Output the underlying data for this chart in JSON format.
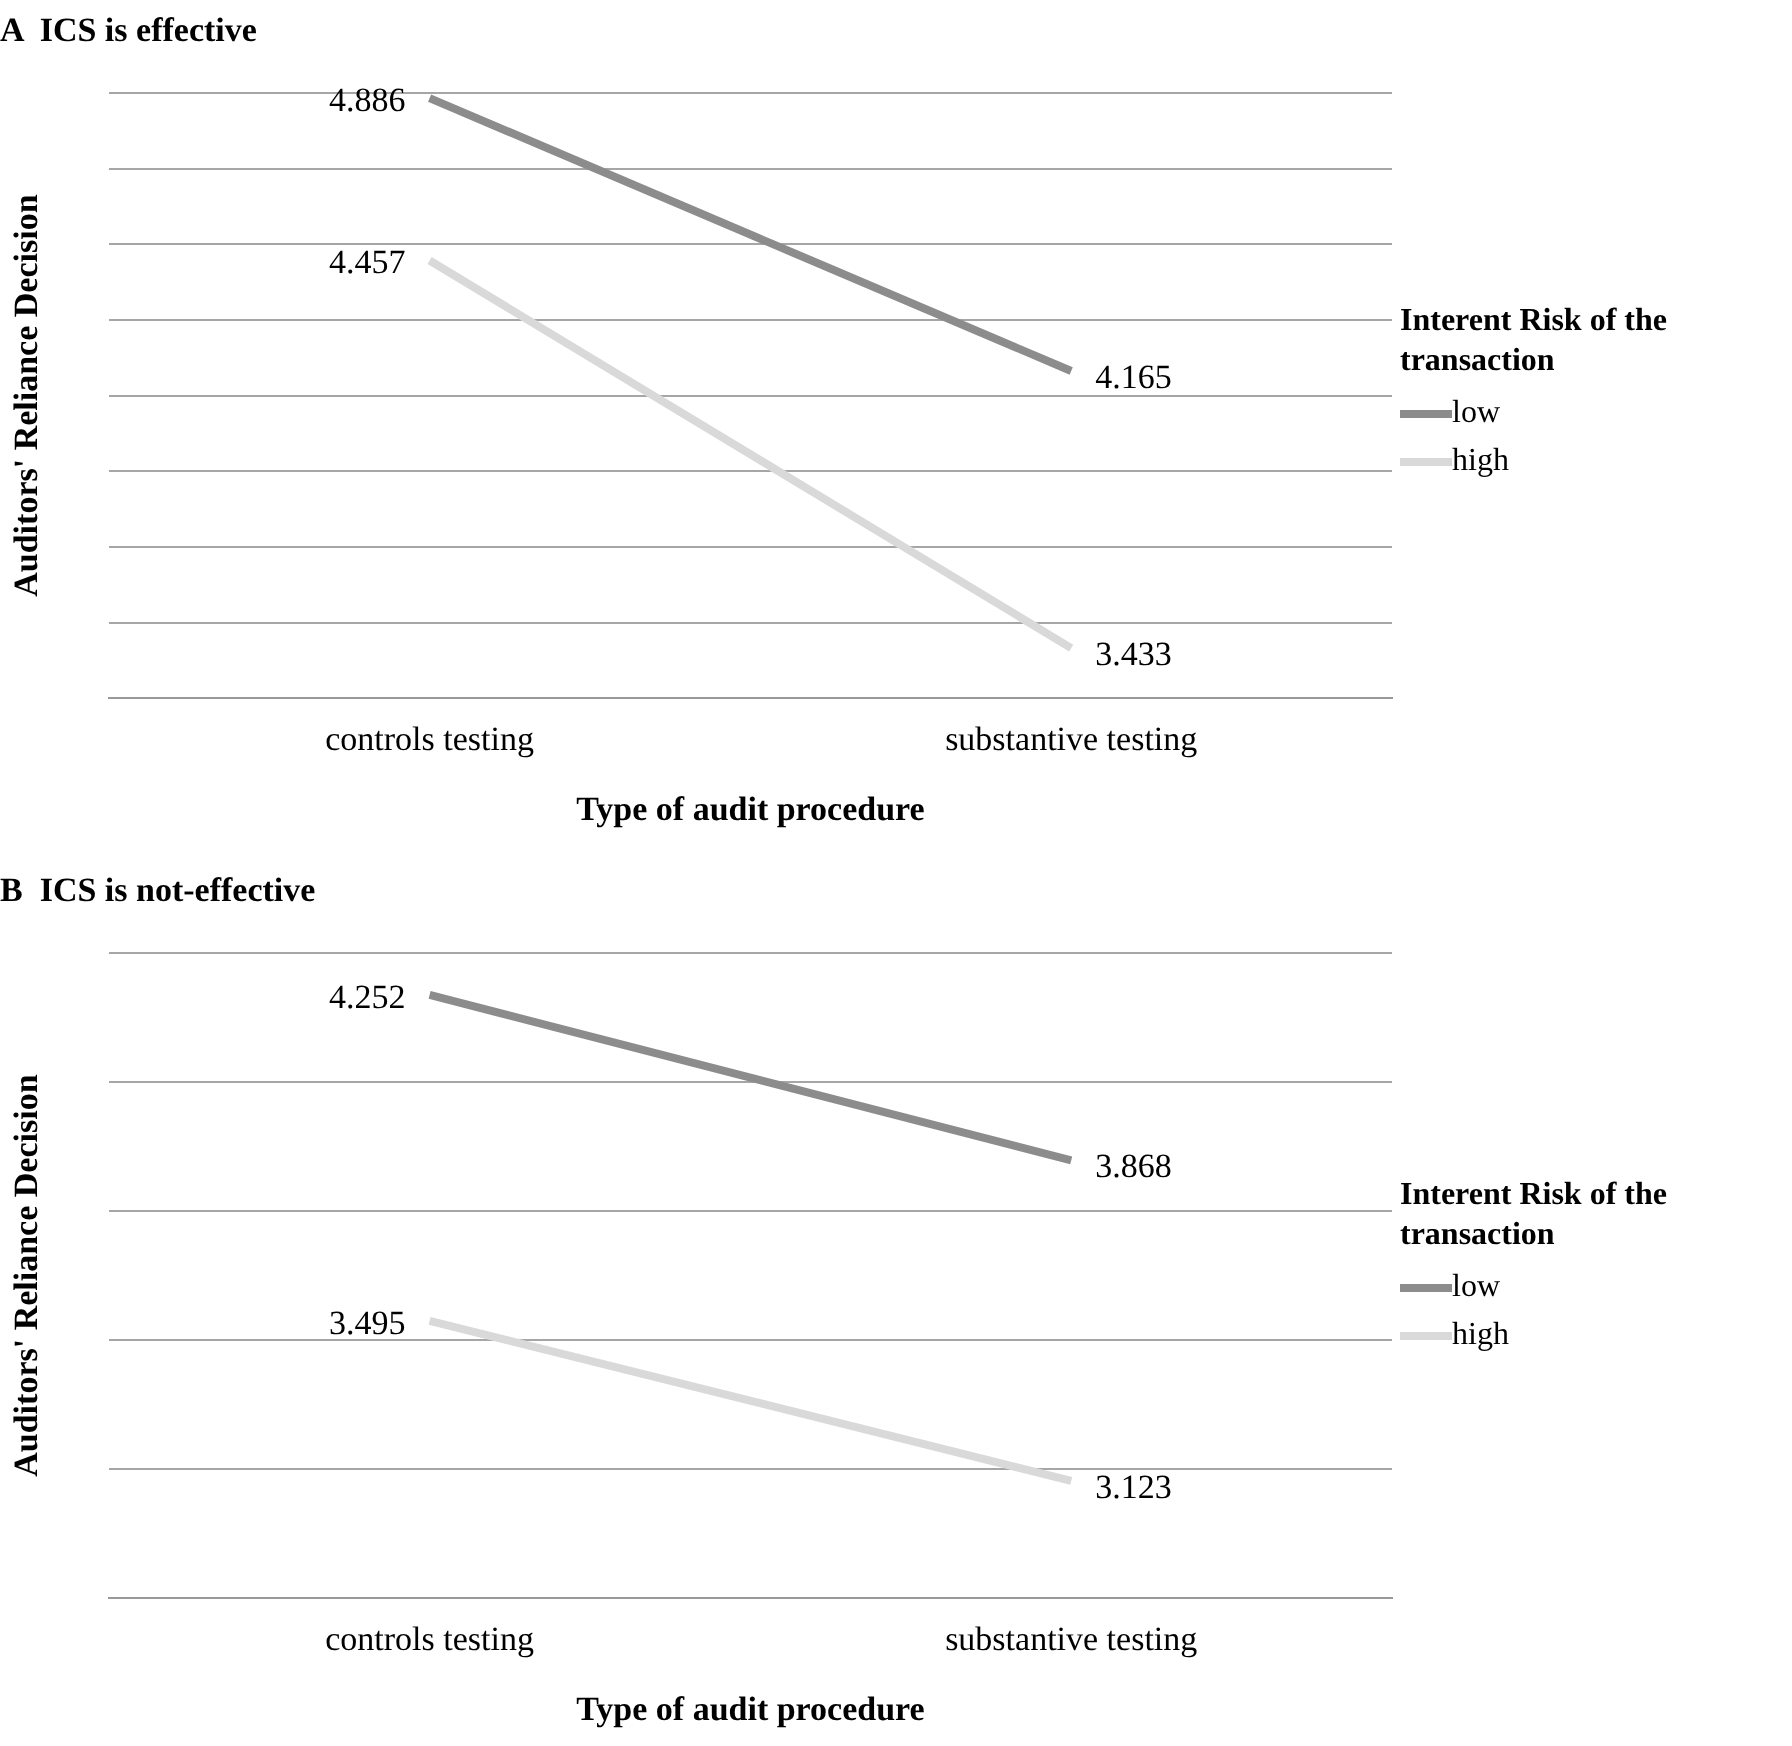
{
  "chart_data": [
    {
      "type": "line",
      "title": "A  ICS is effective",
      "xlabel": "Type of audit procedure",
      "ylabel": "Auditors' Reliance Decision",
      "legend_title": "Interent Risk of the transaction",
      "categories": [
        "controls testing",
        "substantive testing"
      ],
      "series": [
        {
          "name": "low",
          "color": "#8c8c8c",
          "values": [
            4.886,
            4.165
          ]
        },
        {
          "name": "high",
          "color": "#d9d9d9",
          "values": [
            4.457,
            3.433
          ]
        }
      ],
      "ylim": [
        3.3,
        4.9
      ],
      "yticks": [
        {
          "value": 3.3,
          "label": null
        },
        {
          "value": 3.5,
          "label": null
        },
        {
          "value": 3.7,
          "label": null
        },
        {
          "value": 3.9,
          "label": null
        },
        {
          "value": 4.1,
          "label": null
        },
        {
          "value": 4.3,
          "label": null
        },
        {
          "value": 4.5,
          "label": null
        },
        {
          "value": 4.7,
          "label": null
        },
        {
          "value": 4.9,
          "label": null
        }
      ],
      "tick_labels": "x",
      "grid": "y",
      "legend": "right",
      "data_labels": true,
      "marker": "none",
      "line_style": "solid"
    },
    {
      "type": "line",
      "title": "B  ICS is not-effective",
      "xlabel": "Type of audit procedure",
      "ylabel": "Auditors' Reliance Decision",
      "legend_title": "Interent Risk of the transaction",
      "categories": [
        "controls testing",
        "substantive testing"
      ],
      "series": [
        {
          "name": "low",
          "color": "#8c8c8c",
          "values": [
            4.252,
            3.868
          ]
        },
        {
          "name": "high",
          "color": "#d9d9d9",
          "values": [
            3.495,
            3.123
          ]
        }
      ],
      "ylim": [
        2.85,
        4.35
      ],
      "yticks": [
        {
          "value": 2.85,
          "label": null
        },
        {
          "value": 3.15,
          "label": null
        },
        {
          "value": 3.45,
          "label": null
        },
        {
          "value": 3.75,
          "label": null
        },
        {
          "value": 4.05,
          "label": null
        },
        {
          "value": 4.35,
          "label": null
        }
      ],
      "tick_labels": "x",
      "grid": "y",
      "legend": "right",
      "data_labels": true,
      "marker": "none",
      "line_style": "solid"
    }
  ]
}
